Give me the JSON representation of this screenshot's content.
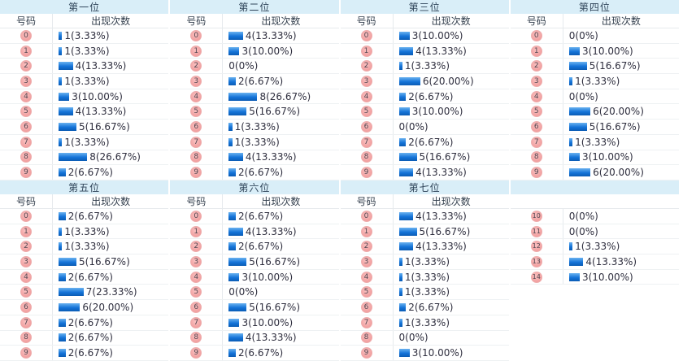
{
  "headers": {
    "number": "号码",
    "count": "出现次数"
  },
  "colors": {
    "section_header_bg": "#d9eef8",
    "section_header_text": "#2f4459",
    "bar_blue": "#1473d8",
    "badge_pink": "#f2a6a6",
    "badge_text": "#4f4550",
    "value_text": "#2e2e3e",
    "row_border": "#eef1f3"
  },
  "chart_data": [
    {
      "type": "bar",
      "title": "第一位",
      "xlabel": "号码",
      "ylabel": "出现次数",
      "categories": [
        "0",
        "1",
        "2",
        "3",
        "4",
        "5",
        "6",
        "7",
        "8",
        "9"
      ],
      "values": [
        1,
        1,
        4,
        1,
        3,
        4,
        5,
        1,
        8,
        2
      ],
      "labels": [
        "1(3.33%)",
        "1(3.33%)",
        "4(13.33%)",
        "1(3.33%)",
        "3(10.00%)",
        "4(13.33%)",
        "5(16.67%)",
        "1(3.33%)",
        "8(26.67%)",
        "2(6.67%)"
      ],
      "headers_visible": true
    },
    {
      "type": "bar",
      "title": "第二位",
      "xlabel": "号码",
      "ylabel": "出现次数",
      "categories": [
        "0",
        "1",
        "2",
        "3",
        "4",
        "5",
        "6",
        "7",
        "8",
        "9"
      ],
      "values": [
        4,
        3,
        0,
        2,
        8,
        5,
        1,
        1,
        4,
        2
      ],
      "labels": [
        "4(13.33%)",
        "3(10.00%)",
        "0(0%)",
        "2(6.67%)",
        "8(26.67%)",
        "5(16.67%)",
        "1(3.33%)",
        "1(3.33%)",
        "4(13.33%)",
        "2(6.67%)"
      ],
      "headers_visible": true
    },
    {
      "type": "bar",
      "title": "第三位",
      "xlabel": "号码",
      "ylabel": "出现次数",
      "categories": [
        "0",
        "1",
        "2",
        "3",
        "4",
        "5",
        "6",
        "7",
        "8",
        "9"
      ],
      "values": [
        3,
        4,
        1,
        6,
        2,
        3,
        0,
        2,
        5,
        4
      ],
      "labels": [
        "3(10.00%)",
        "4(13.33%)",
        "1(3.33%)",
        "6(20.00%)",
        "2(6.67%)",
        "3(10.00%)",
        "0(0%)",
        "2(6.67%)",
        "5(16.67%)",
        "4(13.33%)"
      ],
      "headers_visible": true
    },
    {
      "type": "bar",
      "title": "第四位",
      "xlabel": "号码",
      "ylabel": "出现次数",
      "categories": [
        "0",
        "1",
        "2",
        "3",
        "4",
        "5",
        "6",
        "7",
        "8",
        "9"
      ],
      "values": [
        0,
        3,
        5,
        1,
        0,
        6,
        5,
        1,
        3,
        6
      ],
      "labels": [
        "0(0%)",
        "3(10.00%)",
        "5(16.67%)",
        "1(3.33%)",
        "0(0%)",
        "6(20.00%)",
        "5(16.67%)",
        "1(3.33%)",
        "3(10.00%)",
        "6(20.00%)"
      ],
      "headers_visible": true
    },
    {
      "type": "bar",
      "title": "第五位",
      "xlabel": "号码",
      "ylabel": "出现次数",
      "categories": [
        "0",
        "1",
        "2",
        "3",
        "4",
        "5",
        "6",
        "7",
        "8",
        "9"
      ],
      "values": [
        2,
        1,
        1,
        5,
        2,
        7,
        6,
        2,
        2,
        2
      ],
      "labels": [
        "2(6.67%)",
        "1(3.33%)",
        "1(3.33%)",
        "5(16.67%)",
        "2(6.67%)",
        "7(23.33%)",
        "6(20.00%)",
        "2(6.67%)",
        "2(6.67%)",
        "2(6.67%)"
      ],
      "headers_visible": true
    },
    {
      "type": "bar",
      "title": "第六位",
      "xlabel": "号码",
      "ylabel": "出现次数",
      "categories": [
        "0",
        "1",
        "2",
        "3",
        "4",
        "5",
        "6",
        "7",
        "8",
        "9"
      ],
      "values": [
        2,
        4,
        2,
        5,
        3,
        0,
        5,
        3,
        4,
        2
      ],
      "labels": [
        "2(6.67%)",
        "4(13.33%)",
        "2(6.67%)",
        "5(16.67%)",
        "3(10.00%)",
        "0(0%)",
        "5(16.67%)",
        "3(10.00%)",
        "4(13.33%)",
        "2(6.67%)"
      ],
      "headers_visible": true
    },
    {
      "type": "bar",
      "title": "第七位",
      "xlabel": "号码",
      "ylabel": "出现次数",
      "categories": [
        "0",
        "1",
        "2",
        "3",
        "4",
        "5",
        "6",
        "7",
        "8",
        "9"
      ],
      "values": [
        4,
        5,
        4,
        1,
        1,
        1,
        2,
        1,
        0,
        3
      ],
      "labels": [
        "4(13.33%)",
        "5(16.67%)",
        "4(13.33%)",
        "1(3.33%)",
        "1(3.33%)",
        "1(3.33%)",
        "2(6.67%)",
        "1(3.33%)",
        "0(0%)",
        "3(10.00%)"
      ],
      "headers_visible": true
    },
    {
      "type": "bar",
      "title": "",
      "categories": [
        "10",
        "11",
        "12",
        "13",
        "14"
      ],
      "values": [
        0,
        0,
        1,
        4,
        3
      ],
      "labels": [
        "0(0%)",
        "0(0%)",
        "1(3.33%)",
        "4(13.33%)",
        "3(10.00%)"
      ],
      "headers_visible": false
    }
  ]
}
